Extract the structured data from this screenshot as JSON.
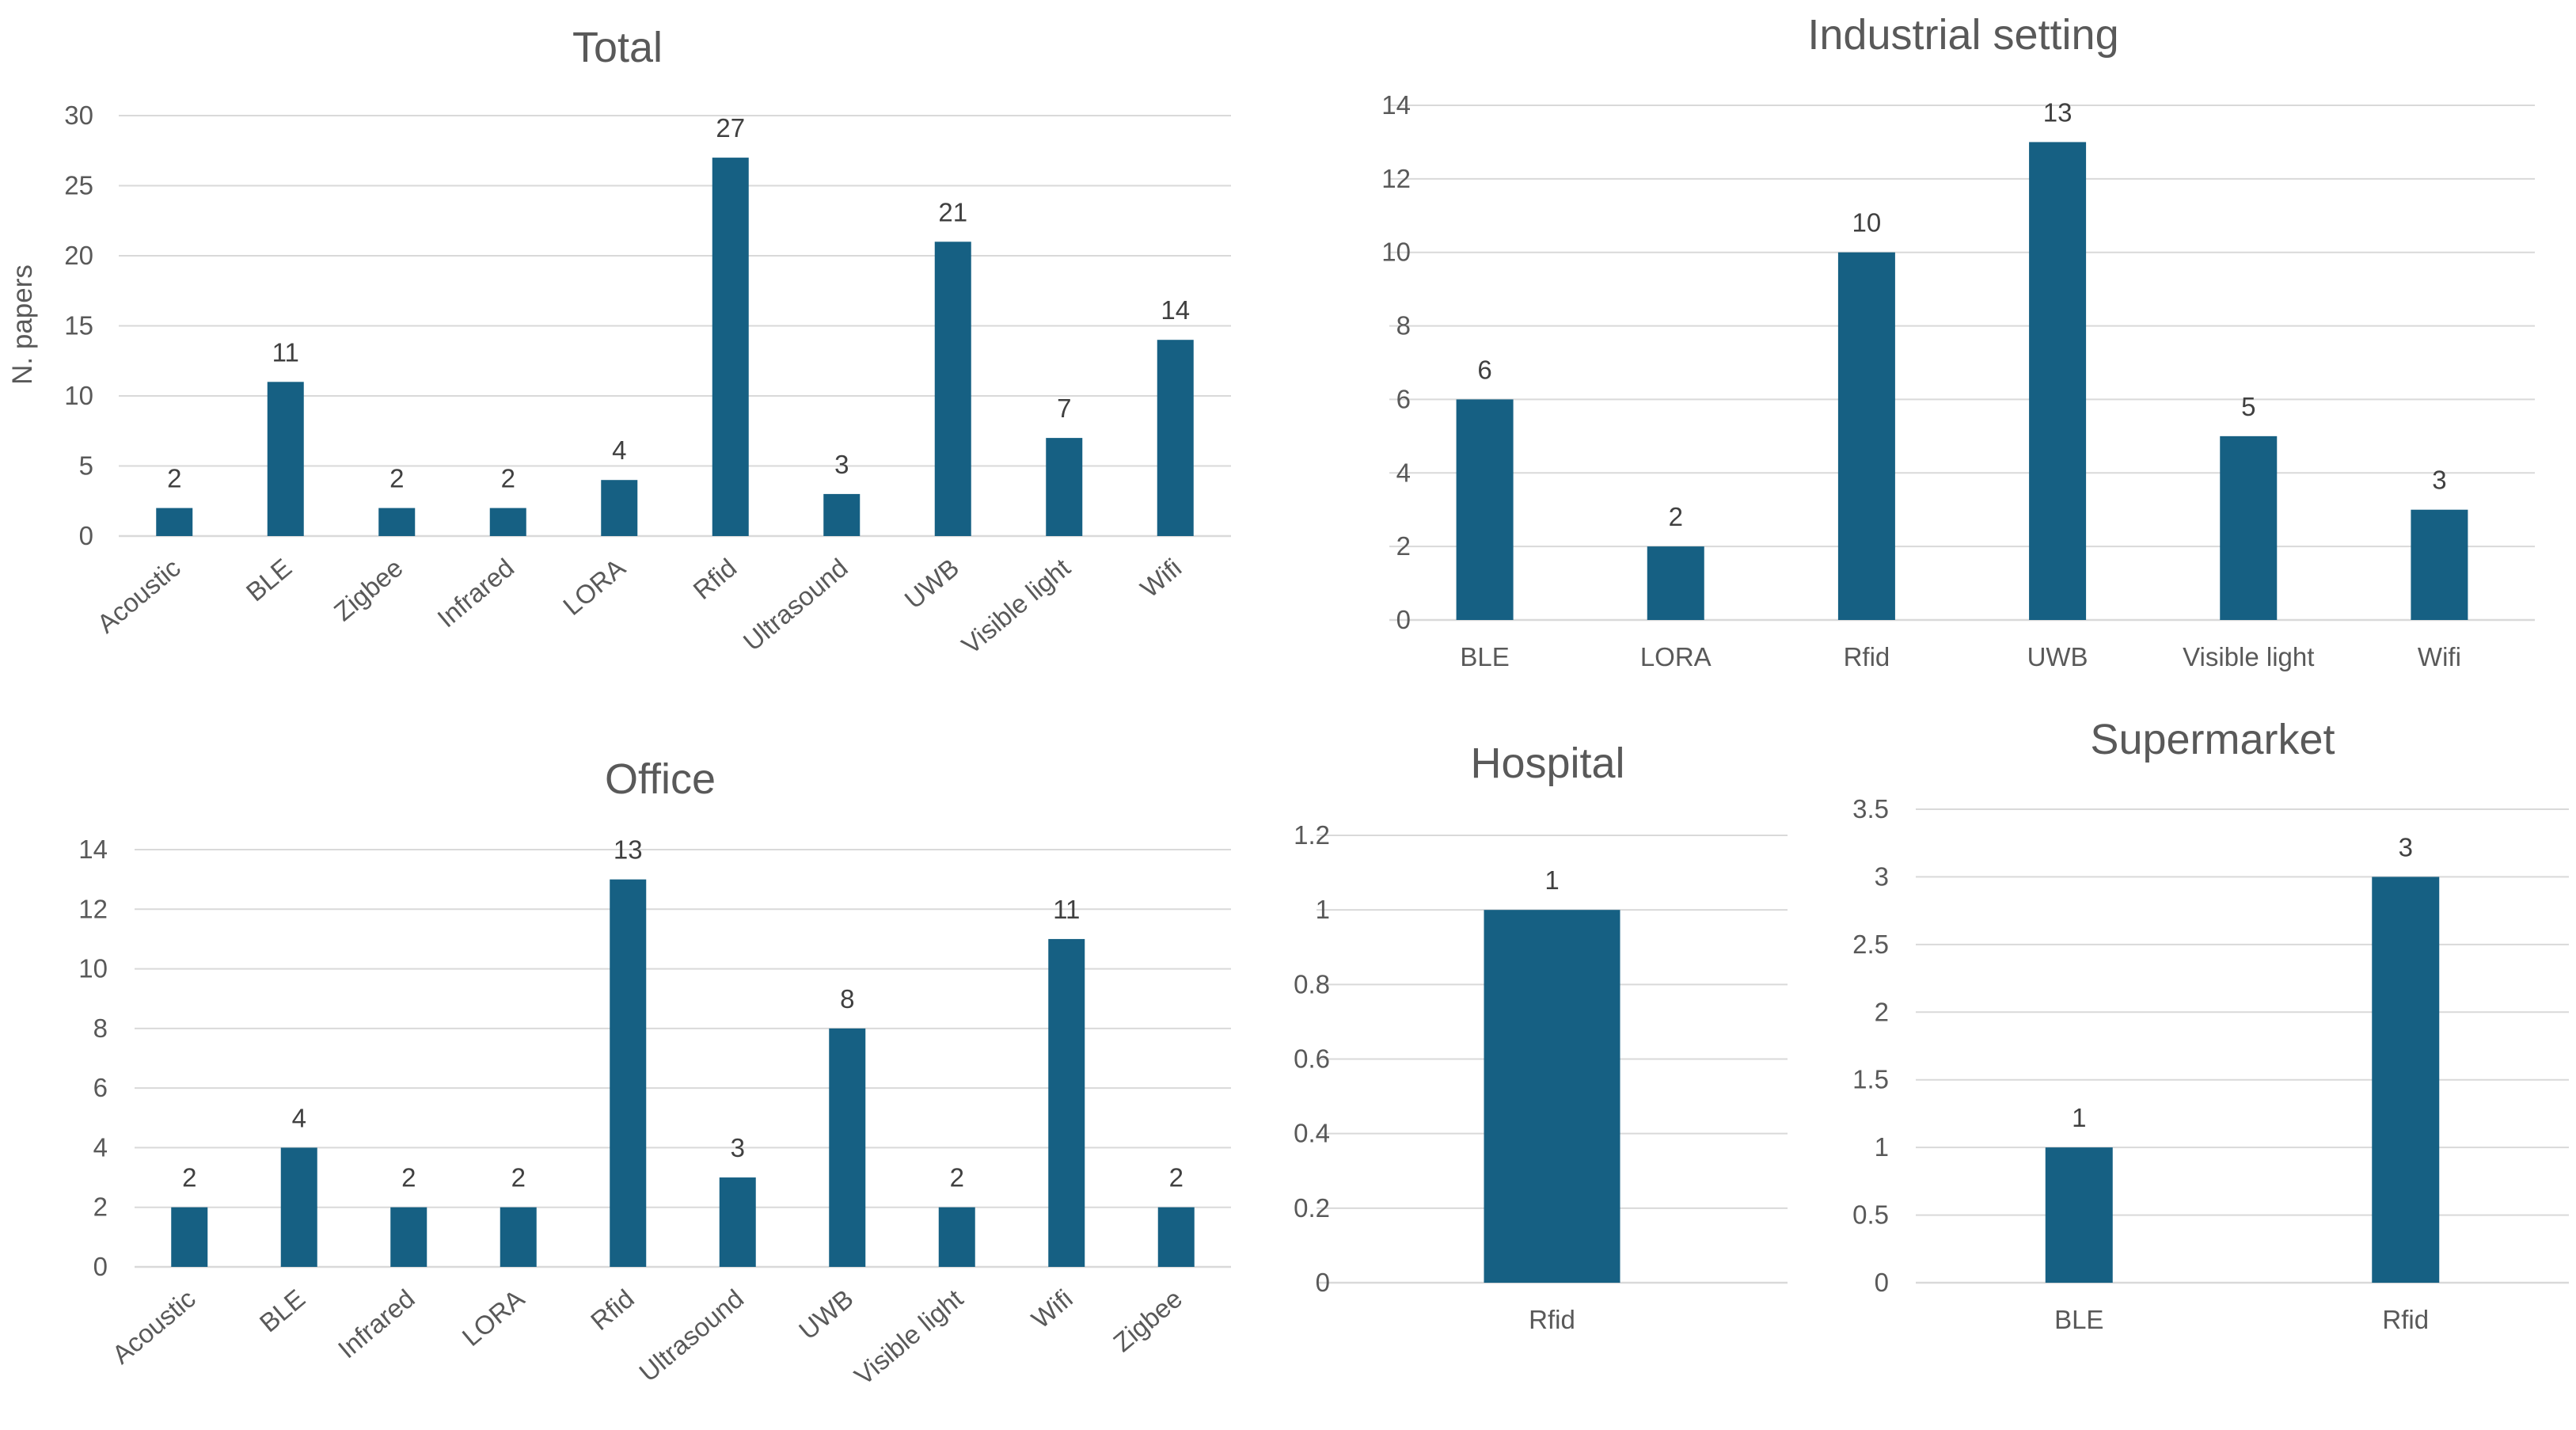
{
  "colors": {
    "bar": "#166083",
    "grid": "#d9d9d9",
    "text": "#595959",
    "label": "#404040"
  },
  "chart_data": [
    {
      "id": "total",
      "type": "bar",
      "title": "Total",
      "ylabel": "N. papers",
      "categories": [
        "Acoustic",
        "BLE",
        "Zigbee",
        "Infrared",
        "LORA",
        "Rfid",
        "Ultrasound",
        "UWB",
        "Visible light",
        "Wifi"
      ],
      "values": [
        2,
        11,
        2,
        2,
        4,
        27,
        3,
        21,
        7,
        14
      ],
      "yticks": [
        0,
        5,
        10,
        15,
        20,
        25,
        30
      ],
      "ylim": [
        0,
        30
      ],
      "grid": true,
      "rotated_labels": true
    },
    {
      "id": "industrial",
      "type": "bar",
      "title": "Industrial setting",
      "ylabel": "",
      "categories": [
        "BLE",
        "LORA",
        "Rfid",
        "UWB",
        "Visible light",
        "Wifi"
      ],
      "values": [
        6,
        2,
        10,
        13,
        5,
        3
      ],
      "yticks": [
        0,
        2,
        4,
        6,
        8,
        10,
        12,
        14
      ],
      "ylim": [
        0,
        14
      ],
      "grid": true,
      "rotated_labels": false
    },
    {
      "id": "office",
      "type": "bar",
      "title": "Office",
      "ylabel": "",
      "categories": [
        "Acoustic",
        "BLE",
        "Infrared",
        "LORA",
        "Rfid",
        "Ultrasound",
        "UWB",
        "Visible light",
        "Wifi",
        "Zigbee"
      ],
      "values": [
        2,
        4,
        2,
        2,
        13,
        3,
        8,
        2,
        11,
        2
      ],
      "yticks": [
        0,
        2,
        4,
        6,
        8,
        10,
        12,
        14
      ],
      "ylim": [
        0,
        14
      ],
      "grid": true,
      "rotated_labels": true
    },
    {
      "id": "hospital",
      "type": "bar",
      "title": "Hospital",
      "ylabel": "",
      "categories": [
        "Rfid"
      ],
      "values": [
        1
      ],
      "yticks": [
        "0",
        "0.2",
        "0.4",
        "0.6",
        "0.8",
        "1",
        "1.2"
      ],
      "ylim": [
        0,
        1.2
      ],
      "grid": true,
      "rotated_labels": false
    },
    {
      "id": "supermarket",
      "type": "bar",
      "title": "Supermarket",
      "ylabel": "",
      "categories": [
        "BLE",
        "Rfid"
      ],
      "values": [
        1,
        3
      ],
      "yticks": [
        "0",
        "0.5",
        "1",
        "1.5",
        "2",
        "2.5",
        "3",
        "3.5"
      ],
      "ylim": [
        0,
        3.5
      ],
      "grid": true,
      "rotated_labels": false
    }
  ]
}
